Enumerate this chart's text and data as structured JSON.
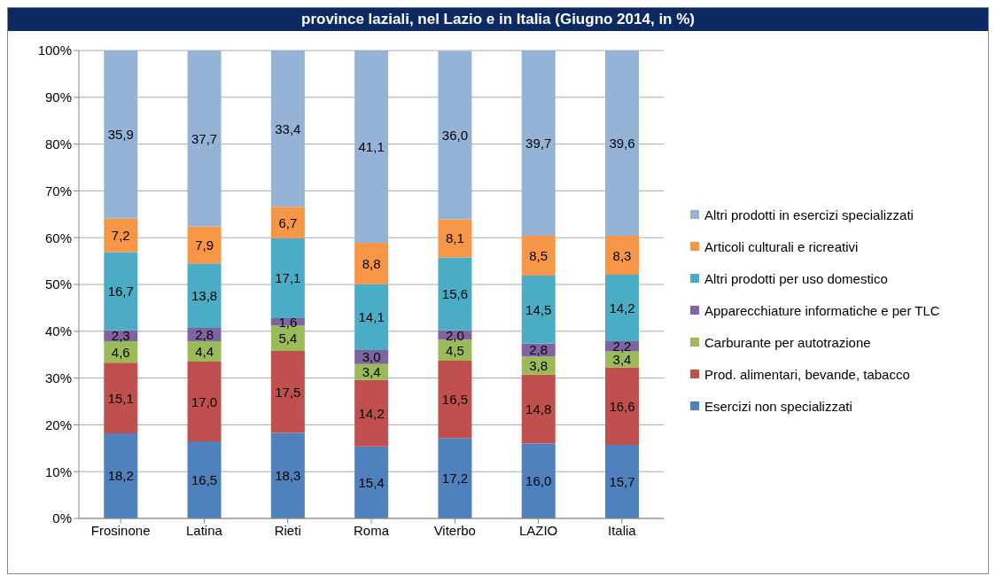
{
  "chart_data": {
    "type": "bar",
    "title": "province laziali, nel Lazio e in Italia (Giugno 2014, in %)",
    "stacked": true,
    "categories": [
      "Frosinone",
      "Latina",
      "Rieti",
      "Roma",
      "Viterbo",
      "LAZIO",
      "Italia"
    ],
    "ylim": [
      0,
      100
    ],
    "yticks": [
      {
        "value": 0,
        "label": "0%"
      },
      {
        "value": 10,
        "label": "10%"
      },
      {
        "value": 20,
        "label": "20%"
      },
      {
        "value": 30,
        "label": "30%"
      },
      {
        "value": 40,
        "label": "40%"
      },
      {
        "value": 50,
        "label": "50%"
      },
      {
        "value": 60,
        "label": "60%"
      },
      {
        "value": 70,
        "label": "70%"
      },
      {
        "value": 80,
        "label": "80%"
      },
      {
        "value": 90,
        "label": "90%"
      },
      {
        "value": 100,
        "label": "100%"
      }
    ],
    "grid": "y",
    "legend": "right",
    "series": [
      {
        "name": "Esercizi non specializzati",
        "color": "#4f81bd",
        "values": [
          18.2,
          16.5,
          18.3,
          15.4,
          17.2,
          16.0,
          15.7
        ],
        "value_labels": [
          "18,2",
          "16,5",
          "18,3",
          "15,4",
          "17,2",
          "16,0",
          "15,7"
        ]
      },
      {
        "name": "Prod. alimentari,  bevande, tabacco",
        "color": "#c0504d",
        "values": [
          15.1,
          17.0,
          17.5,
          14.2,
          16.5,
          14.8,
          16.6
        ],
        "value_labels": [
          "15,1",
          "17,0",
          "17,5",
          "14,2",
          "16,5",
          "14,8",
          "16,6"
        ]
      },
      {
        "name": "Carburante per autotrazione",
        "color": "#9bbb59",
        "values": [
          4.6,
          4.4,
          5.4,
          3.4,
          4.5,
          3.8,
          3.4
        ],
        "value_labels": [
          "4,6",
          "4,4",
          "5,4",
          "3,4",
          "4,5",
          "3,8",
          "3,4"
        ]
      },
      {
        "name": "Apparecchiature informatiche e per TLC",
        "color": "#8064a2",
        "values": [
          2.3,
          2.8,
          1.6,
          3.0,
          2.0,
          2.8,
          2.2
        ],
        "value_labels": [
          "2,3",
          "2,8",
          "1,6",
          "3,0",
          "2,0",
          "2,8",
          "2,2"
        ]
      },
      {
        "name": "Altri prodotti  per uso domestico",
        "color": "#4bacc6",
        "values": [
          16.7,
          13.8,
          17.1,
          14.1,
          15.6,
          14.5,
          14.2
        ],
        "value_labels": [
          "16,7",
          "13,8",
          "17,1",
          "14,1",
          "15,6",
          "14,5",
          "14,2"
        ]
      },
      {
        "name": "Articoli culturali e ricreativi",
        "color": "#f79646",
        "values": [
          7.2,
          7.9,
          6.7,
          8.8,
          8.1,
          8.5,
          8.3
        ],
        "value_labels": [
          "7,2",
          "7,9",
          "6,7",
          "8,8",
          "8,1",
          "8,5",
          "8,3"
        ]
      },
      {
        "name": "Altri prodotti  in esercizi specializzati",
        "color": "#95b3d7",
        "values": [
          35.9,
          37.7,
          33.4,
          41.1,
          36.0,
          39.7,
          39.6
        ],
        "value_labels": [
          "35,9",
          "37,7",
          "33,4",
          "41,1",
          "36,0",
          "39,7",
          "39,6"
        ]
      }
    ]
  }
}
